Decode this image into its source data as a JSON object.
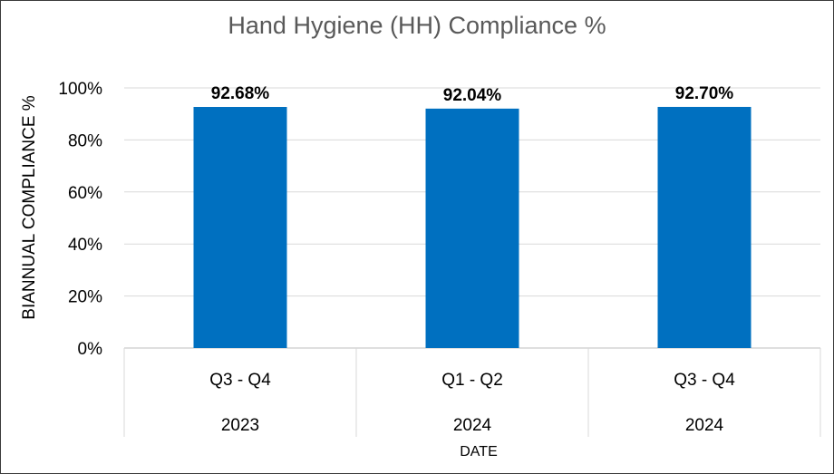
{
  "chart_data": {
    "type": "bar",
    "title": "Hand Hygiene (HH) Compliance %",
    "ylabel": "BIANNUAL COMPLIANCE %",
    "xlabel": "DATE",
    "categories": [
      {
        "period": "Q3 - Q4",
        "year": "2023"
      },
      {
        "period": "Q1 - Q2",
        "year": "2024"
      },
      {
        "period": "Q3 - Q4",
        "year": "2024"
      }
    ],
    "values": [
      92.68,
      92.04,
      92.7
    ],
    "data_labels": [
      "92.68%",
      "92.04%",
      "92.70%"
    ],
    "ylim": [
      0,
      100
    ],
    "yticks": [
      "0%",
      "20%",
      "40%",
      "60%",
      "80%",
      "100%"
    ],
    "grid": true,
    "legend": "none",
    "bar_color": "#0070C0"
  }
}
